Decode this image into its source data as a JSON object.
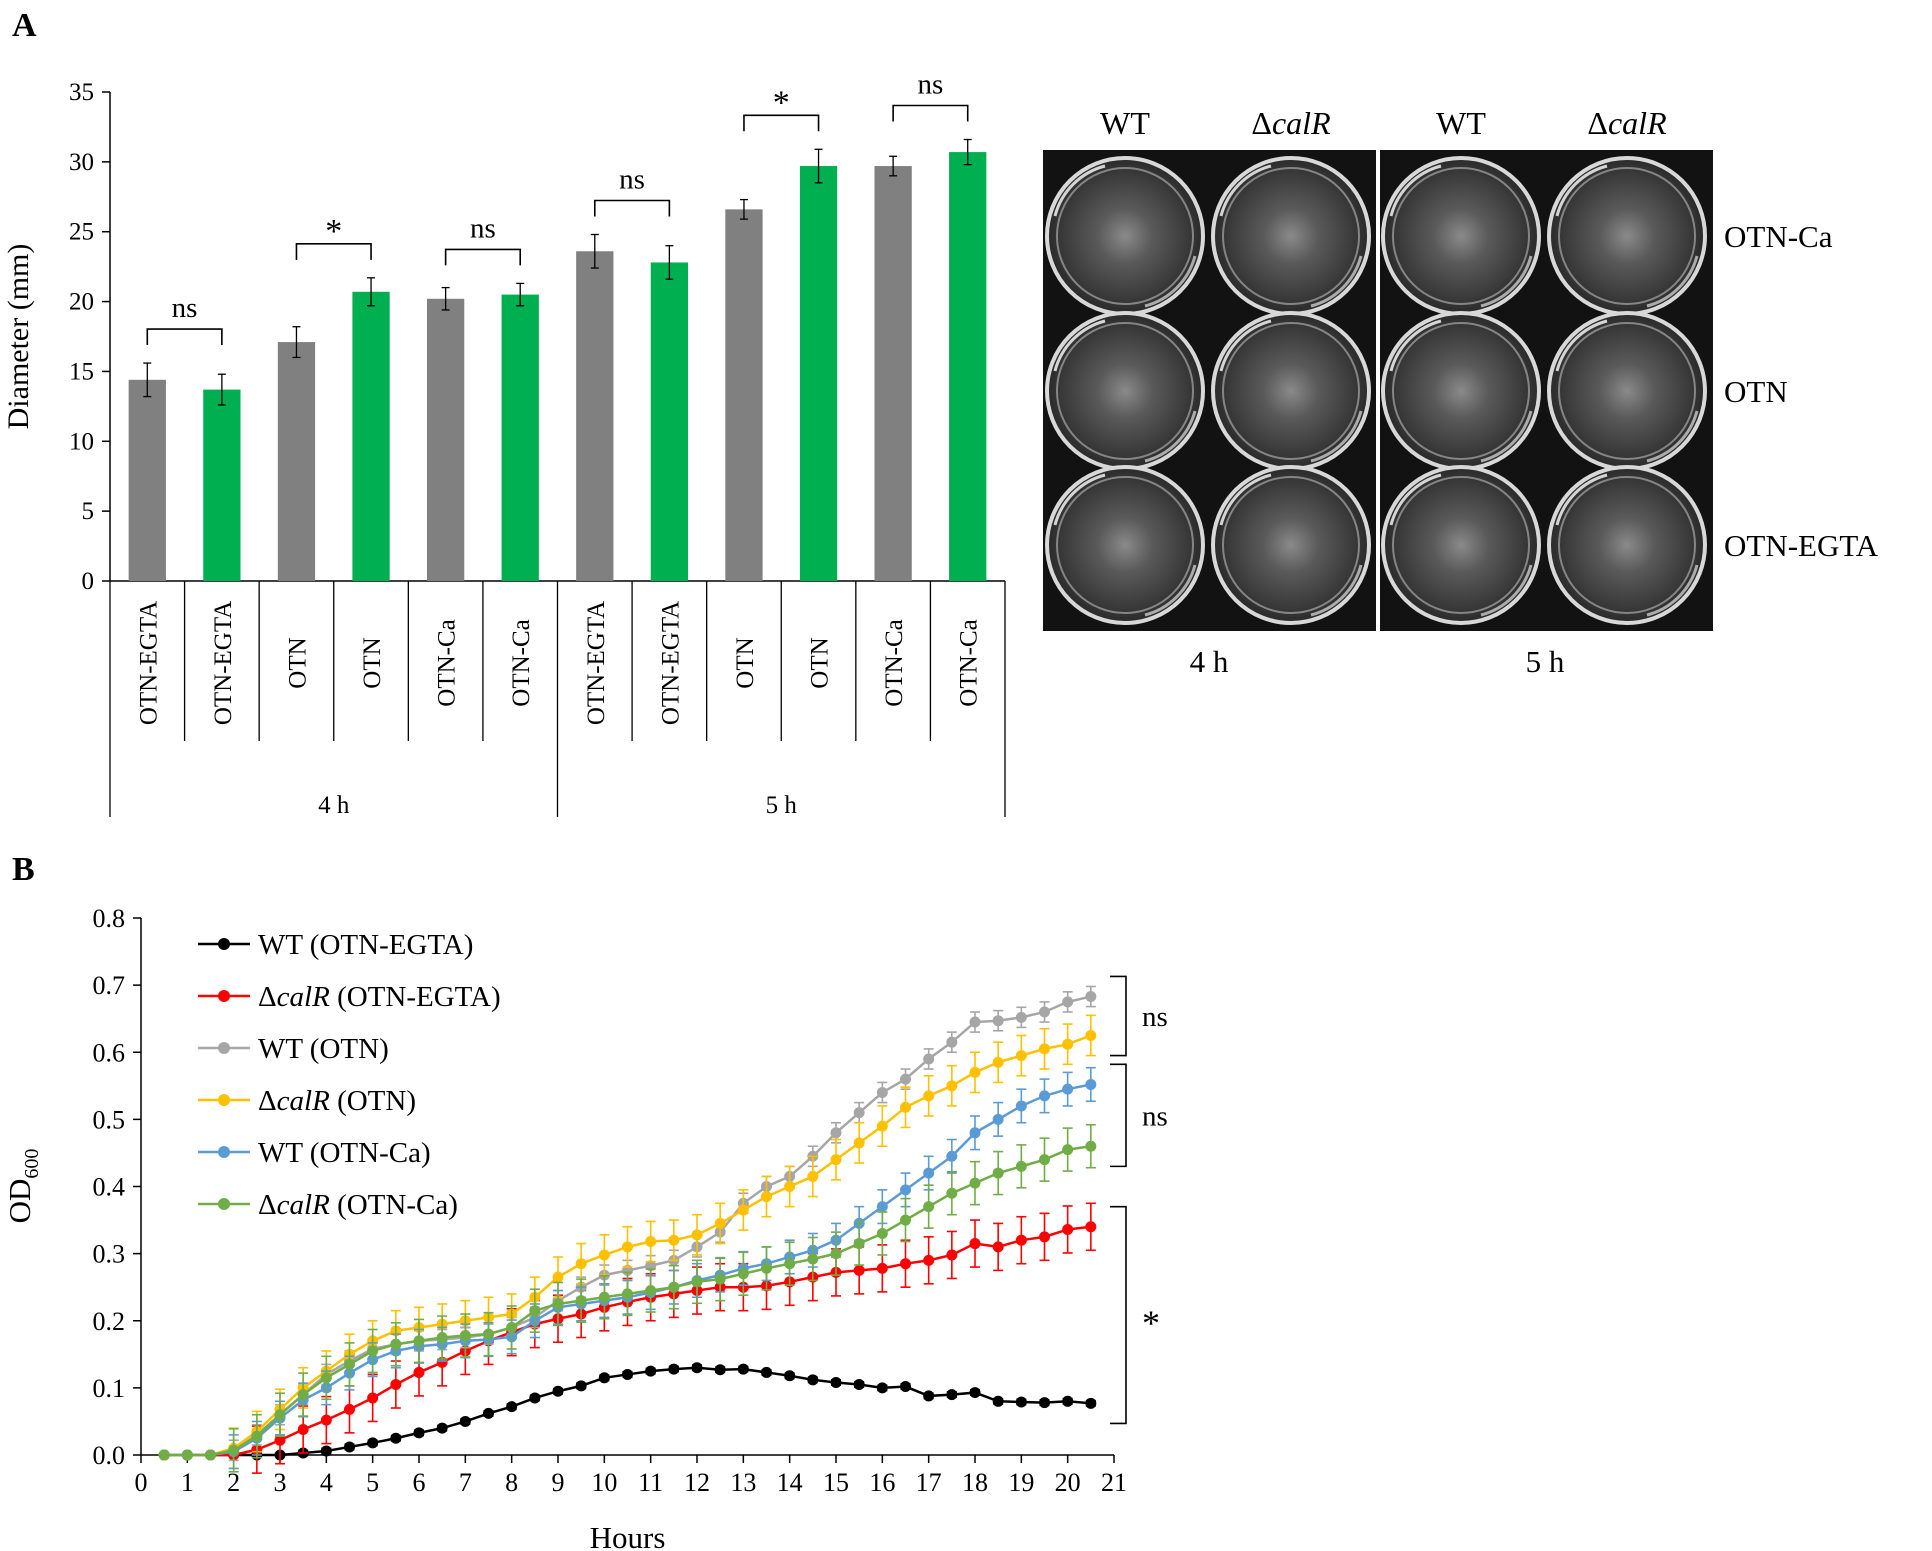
{
  "panels": {
    "a_label": "A",
    "b_label": "B"
  },
  "chart_data": [
    {
      "type": "bar",
      "panel": "A",
      "ylabel": "Diameter (mm)",
      "ylim": [
        0,
        35
      ],
      "yticks": [
        0,
        5,
        10,
        15,
        20,
        25,
        30,
        35
      ],
      "categories": [
        "OTN-EGTA",
        "OTN-EGTA",
        "OTN",
        "OTN",
        "OTN-Ca",
        "OTN-Ca",
        "OTN-EGTA",
        "OTN-EGTA",
        "OTN",
        "OTN",
        "OTN-Ca",
        "OTN-Ca"
      ],
      "groups": [
        {
          "label": "4 h",
          "count": 6
        },
        {
          "label": "5 h",
          "count": 6
        }
      ],
      "values": [
        14.4,
        13.7,
        17.1,
        20.7,
        20.2,
        20.5,
        23.6,
        22.8,
        26.6,
        29.7,
        29.7,
        30.7
      ],
      "errors": [
        1.2,
        1.1,
        1.1,
        1.0,
        0.8,
        0.8,
        1.2,
        1.2,
        0.7,
        1.2,
        0.7,
        0.9
      ],
      "strains": [
        "WT",
        "ΔcalR",
        "WT",
        "ΔcalR",
        "WT",
        "ΔcalR",
        "WT",
        "ΔcalR",
        "WT",
        "ΔcalR",
        "WT",
        "ΔcalR"
      ],
      "colors": {
        "WT": "#808080",
        "ΔcalR": "#00b050"
      },
      "significance": [
        {
          "pair": [
            0,
            1
          ],
          "label": "ns"
        },
        {
          "pair": [
            2,
            3
          ],
          "label": "*"
        },
        {
          "pair": [
            4,
            5
          ],
          "label": "ns"
        },
        {
          "pair": [
            6,
            7
          ],
          "label": "ns"
        },
        {
          "pair": [
            8,
            9
          ],
          "label": "*"
        },
        {
          "pair": [
            10,
            11
          ],
          "label": "ns"
        }
      ]
    },
    {
      "type": "line",
      "panel": "B",
      "xlabel": "Hours",
      "ylabel_main": "OD",
      "ylabel_sub": "600",
      "xlim": [
        0,
        21
      ],
      "ylim": [
        0,
        0.8
      ],
      "xticks": [
        0,
        1,
        2,
        3,
        4,
        5,
        6,
        7,
        8,
        9,
        10,
        11,
        12,
        13,
        14,
        15,
        16,
        17,
        18,
        19,
        20,
        21
      ],
      "yticks": [
        "0.0",
        "0.1",
        "0.2",
        "0.3",
        "0.4",
        "0.5",
        "0.6",
        "0.7",
        "0.8"
      ],
      "x": [
        0.5,
        1,
        1.5,
        2,
        2.5,
        3,
        3.5,
        4,
        4.5,
        5,
        5.5,
        6,
        6.5,
        7,
        7.5,
        8,
        8.5,
        9,
        9.5,
        10,
        10.5,
        11,
        11.5,
        12,
        12.5,
        13,
        13.5,
        14,
        14.5,
        15,
        15.5,
        16,
        16.5,
        17,
        17.5,
        18,
        18.5,
        19,
        19.5,
        20,
        20.5
      ],
      "series": [
        {
          "name": "WT (OTN-EGTA)",
          "legend_pre": "WT (OTN-EGTA)",
          "legend_it": "",
          "legend_post": "",
          "color": "#000000",
          "err": 0.004,
          "values": [
            0,
            0,
            0,
            0,
            0,
            0,
            0.003,
            0.006,
            0.012,
            0.018,
            0.025,
            0.033,
            0.04,
            0.05,
            0.062,
            0.072,
            0.085,
            0.095,
            0.103,
            0.115,
            0.12,
            0.125,
            0.128,
            0.13,
            0.127,
            0.128,
            0.123,
            0.118,
            0.112,
            0.108,
            0.105,
            0.1,
            0.102,
            0.088,
            0.09,
            0.093,
            0.08,
            0.079,
            0.078,
            0.08,
            0.077
          ]
        },
        {
          "name": "ΔcalR (OTN-EGTA)",
          "legend_pre": "Δ",
          "legend_it": "calR",
          "legend_post": " (OTN-EGTA)",
          "color": "#ff0000",
          "err": 0.035,
          "values": [
            0,
            0,
            0,
            0,
            0.008,
            0.022,
            0.038,
            0.052,
            0.068,
            0.085,
            0.105,
            0.123,
            0.138,
            0.155,
            0.17,
            0.183,
            0.195,
            0.203,
            0.21,
            0.22,
            0.228,
            0.235,
            0.24,
            0.245,
            0.25,
            0.25,
            0.252,
            0.258,
            0.265,
            0.272,
            0.275,
            0.278,
            0.285,
            0.29,
            0.298,
            0.315,
            0.31,
            0.32,
            0.325,
            0.336,
            0.34
          ]
        },
        {
          "name": "WT (OTN)",
          "legend_pre": " WT (OTN)",
          "legend_it": "",
          "legend_post": "",
          "color": "#a6a6a6",
          "err": 0.015,
          "values": [
            0,
            0,
            0,
            0.007,
            0.03,
            0.06,
            0.09,
            0.12,
            0.14,
            0.158,
            0.165,
            0.17,
            0.172,
            0.175,
            0.18,
            0.19,
            0.205,
            0.23,
            0.25,
            0.268,
            0.275,
            0.282,
            0.29,
            0.31,
            0.332,
            0.375,
            0.4,
            0.415,
            0.445,
            0.48,
            0.51,
            0.54,
            0.56,
            0.59,
            0.615,
            0.645,
            0.647,
            0.652,
            0.66,
            0.675,
            0.683
          ]
        },
        {
          "name": "ΔcalR (OTN)",
          "legend_pre": "Δ",
          "legend_it": "calR",
          "legend_post": " (OTN)",
          "color": "#ffc000",
          "err": 0.03,
          "values": [
            0,
            0,
            0,
            0.01,
            0.035,
            0.068,
            0.1,
            0.125,
            0.15,
            0.17,
            0.185,
            0.19,
            0.195,
            0.2,
            0.205,
            0.21,
            0.235,
            0.265,
            0.285,
            0.298,
            0.31,
            0.318,
            0.32,
            0.328,
            0.345,
            0.365,
            0.385,
            0.4,
            0.415,
            0.44,
            0.465,
            0.49,
            0.518,
            0.535,
            0.55,
            0.57,
            0.585,
            0.595,
            0.605,
            0.612,
            0.625
          ]
        },
        {
          "name": "WT (OTN-Ca)",
          "legend_pre": "WT (OTN-Ca)",
          "legend_it": "",
          "legend_post": "",
          "color": "#5b9bd5",
          "err": 0.025,
          "values": [
            0,
            0,
            0,
            0.005,
            0.025,
            0.055,
            0.082,
            0.1,
            0.122,
            0.142,
            0.155,
            0.162,
            0.165,
            0.17,
            0.172,
            0.176,
            0.2,
            0.22,
            0.225,
            0.23,
            0.235,
            0.242,
            0.25,
            0.26,
            0.268,
            0.278,
            0.285,
            0.295,
            0.305,
            0.32,
            0.345,
            0.37,
            0.395,
            0.42,
            0.445,
            0.48,
            0.5,
            0.52,
            0.535,
            0.545,
            0.552
          ]
        },
        {
          "name": "ΔcalR (OTN-Ca)",
          "legend_pre": "Δ",
          "legend_it": "calR",
          "legend_post": " (OTN-Ca)",
          "color": "#70ad47",
          "err": 0.032,
          "values": [
            0,
            0,
            0,
            0.007,
            0.028,
            0.06,
            0.09,
            0.115,
            0.135,
            0.155,
            0.165,
            0.17,
            0.175,
            0.178,
            0.18,
            0.19,
            0.215,
            0.225,
            0.23,
            0.235,
            0.24,
            0.245,
            0.25,
            0.258,
            0.262,
            0.27,
            0.278,
            0.285,
            0.292,
            0.3,
            0.315,
            0.33,
            0.35,
            0.37,
            0.39,
            0.405,
            0.42,
            0.43,
            0.44,
            0.455,
            0.46
          ]
        }
      ],
      "brackets": [
        {
          "series": [
            2,
            3
          ],
          "label": "ns"
        },
        {
          "series": [
            4,
            5
          ],
          "label": "ns"
        },
        {
          "series": [
            0,
            1
          ],
          "label": "*"
        }
      ]
    }
  ],
  "plate": {
    "columns": [
      {
        "pre": "WT",
        "it": ""
      },
      {
        "pre": "Δ",
        "it": "calR"
      },
      {
        "pre": "WT",
        "it": ""
      },
      {
        "pre": "Δ",
        "it": "calR"
      }
    ],
    "rows": [
      "OTN-Ca",
      "OTN",
      "OTN-EGTA"
    ],
    "times": [
      "4 h",
      "5 h"
    ]
  }
}
